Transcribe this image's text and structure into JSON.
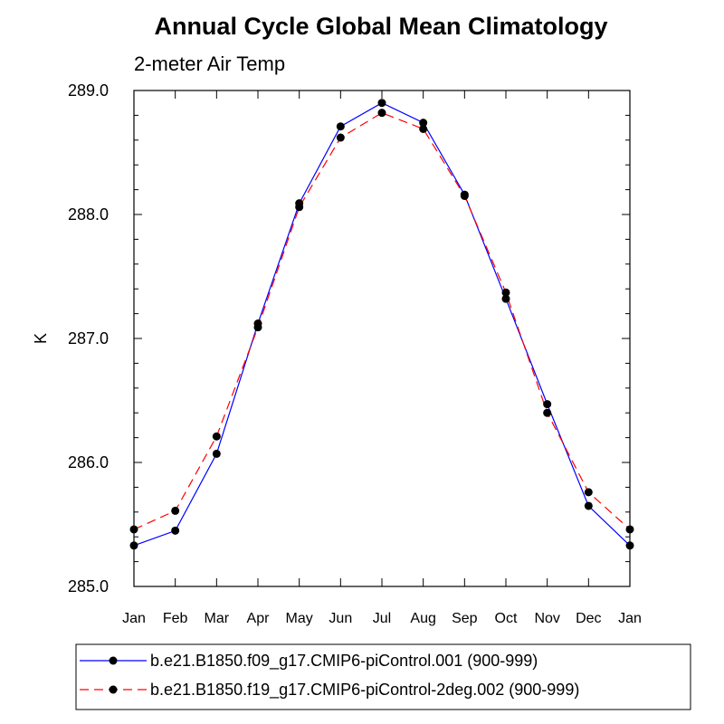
{
  "chart_data": {
    "type": "line",
    "title": "Annual Cycle Global Mean Climatology",
    "subtitle": "2-meter Air Temp",
    "xlabel": "",
    "ylabel": "K",
    "categories": [
      "Jan",
      "Feb",
      "Mar",
      "Apr",
      "May",
      "Jun",
      "Jul",
      "Aug",
      "Sep",
      "Oct",
      "Nov",
      "Dec",
      "Jan"
    ],
    "ylim": [
      285.0,
      289.0
    ],
    "yticks": [
      "285.0",
      "286.0",
      "287.0",
      "288.0",
      "289.0"
    ],
    "grid": false,
    "legend_position": "bottom",
    "series": [
      {
        "name": "b.e21.B1850.f09_g17.CMIP6-piControl.001 (900-999)",
        "color": "#0000ff",
        "line_style": "solid",
        "marker": "filled-circle",
        "values": [
          285.33,
          285.45,
          286.07,
          287.12,
          288.09,
          288.71,
          288.9,
          288.74,
          288.16,
          287.32,
          286.47,
          285.65,
          285.33
        ]
      },
      {
        "name": "b.e21.B1850.f19_g17.CMIP6-piControl-2deg.002 (900-999)",
        "color": "#ff0000",
        "line_style": "dashed",
        "marker": "filled-circle",
        "values": [
          285.46,
          285.61,
          286.21,
          287.09,
          288.06,
          288.62,
          288.82,
          288.69,
          288.15,
          287.37,
          286.4,
          285.76,
          285.46
        ]
      }
    ]
  }
}
